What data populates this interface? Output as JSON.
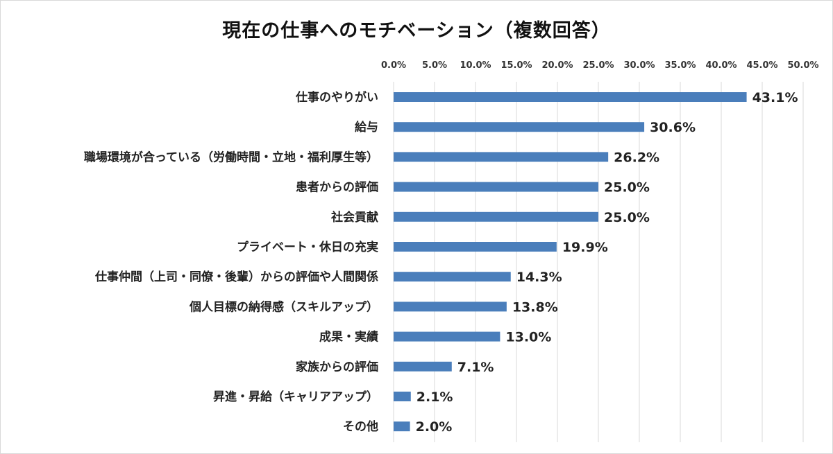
{
  "chart_data": {
    "type": "bar",
    "orientation": "horizontal",
    "title": "現在の仕事へのモチベーション（複数回答）",
    "categories": [
      "仕事のやりがい",
      "給与",
      "職場環境が合っている（労働時間・立地・福利厚生等）",
      "患者からの評価",
      "社会貢献",
      "プライベート・休日の充実",
      "仕事仲間（上司・同僚・後輩）からの評価や人間関係",
      "個人目標の納得感（スキルアップ）",
      "成果・実績",
      "家族からの評価",
      "昇進・昇給（キャリアアップ）",
      "その他"
    ],
    "values": [
      43.1,
      30.6,
      26.2,
      25.0,
      25.0,
      19.9,
      14.3,
      13.8,
      13.0,
      7.1,
      2.1,
      2.0
    ],
    "data_labels": [
      "43.1%",
      "30.6%",
      "26.2%",
      "25.0%",
      "25.0%",
      "19.9%",
      "14.3%",
      "13.8%",
      "13.0%",
      "7.1%",
      "2.1%",
      "2.0%"
    ],
    "xlim": [
      0,
      50
    ],
    "x_ticks": [
      "0.0%",
      "5.0%",
      "10.0%",
      "15.0%",
      "20.0%",
      "25.0%",
      "30.0%",
      "35.0%",
      "40.0%",
      "45.0%",
      "50.0%"
    ],
    "axis_position": "top",
    "grid": true,
    "bar_color": "#4a7ebb"
  }
}
